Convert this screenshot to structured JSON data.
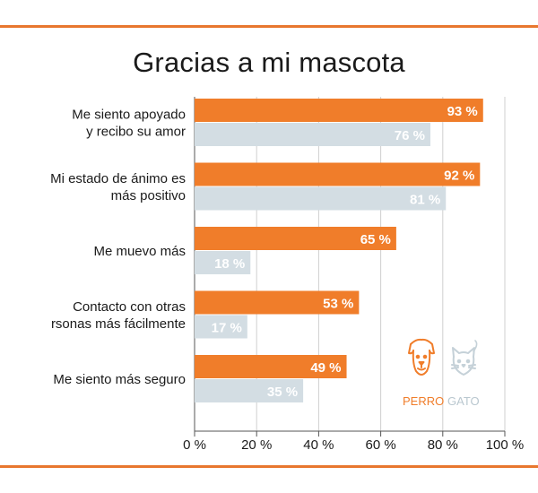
{
  "chart_data": {
    "type": "bar",
    "orientation": "horizontal",
    "title": "Gracias a mi mascota",
    "categories": [
      [
        "Me siento apoyado",
        "y recibo su amor"
      ],
      [
        "Mi estado de ánimo es",
        "más positivo"
      ],
      [
        "Me muevo más"
      ],
      [
        "Contacto con otras",
        "rsonas más fácilmente"
      ],
      [
        "Me siento más seguro"
      ]
    ],
    "series": [
      {
        "name": "PERRO",
        "color": "#f07d2a",
        "values": [
          93,
          92,
          65,
          53,
          49
        ],
        "labels": [
          "93 %",
          "92 %",
          "65 %",
          "53 %",
          "49 %"
        ]
      },
      {
        "name": "GATO",
        "color": "#d3dde3",
        "values": [
          76,
          81,
          18,
          17,
          35
        ],
        "labels": [
          "76 %",
          "81 %",
          "18 %",
          "17 %",
          "35 %"
        ]
      }
    ],
    "xlim": [
      0,
      100
    ],
    "xticks": [
      0,
      20,
      40,
      60,
      80,
      100
    ],
    "xtick_labels": [
      "0 %",
      "20 %",
      "40 %",
      "60 %",
      "80 %",
      "100 %"
    ],
    "grid": true,
    "legend": {
      "position": "bottom-right",
      "icons": [
        "dog-icon",
        "cat-icon"
      ]
    }
  },
  "colors": {
    "accent": "#e8772e",
    "dog": "#f07d2a",
    "cat": "#d3dde3",
    "cat_legend_text": "#b9c7cf"
  }
}
